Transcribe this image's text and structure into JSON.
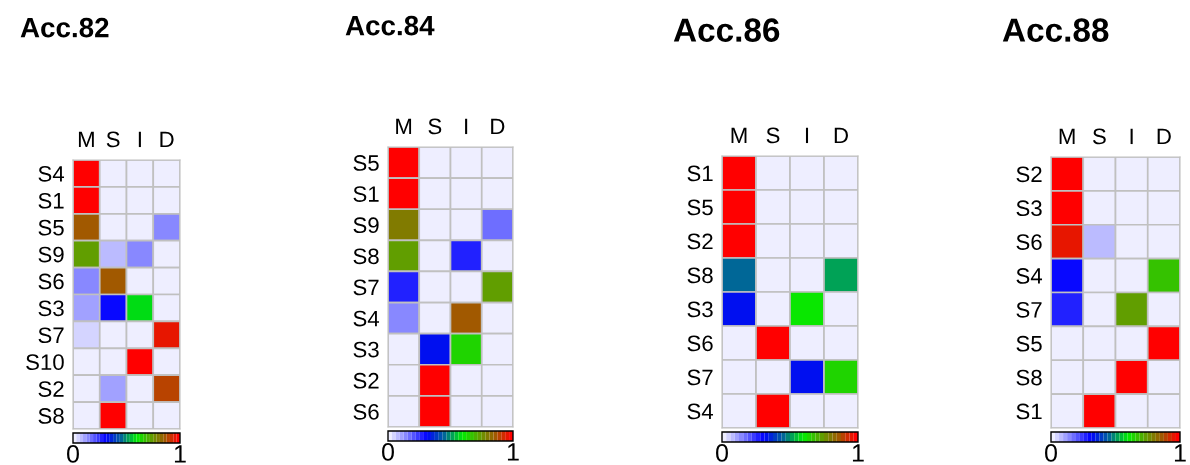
{
  "chart_data": [
    {
      "type": "heatmap",
      "title": "Acc.82",
      "categories": [
        "M",
        "S",
        "I",
        "D"
      ],
      "y_categories": [
        "S4",
        "S1",
        "S5",
        "S9",
        "S6",
        "S3",
        "S7",
        "S10",
        "S2",
        "S8"
      ],
      "cells": [
        [
          1,
          0,
          0,
          0
        ],
        [
          1,
          0,
          0,
          0
        ],
        [
          0.85,
          0,
          0,
          0.15
        ],
        [
          0.72,
          0.07,
          0.15,
          0
        ],
        [
          0.15,
          0.85,
          0,
          0
        ],
        [
          0.1,
          0.3,
          0.58,
          0
        ],
        [
          0.06,
          0,
          0,
          0.95
        ],
        [
          0,
          0,
          1,
          0
        ],
        [
          0,
          0.1,
          0,
          0.9
        ],
        [
          0,
          1,
          0,
          0
        ]
      ],
      "clim": [
        0,
        1
      ],
      "cticks": [
        0,
        1
      ]
    },
    {
      "type": "heatmap",
      "title": "Acc.84",
      "categories": [
        "M",
        "S",
        "I",
        "D"
      ],
      "y_categories": [
        "S5",
        "S1",
        "S9",
        "S8",
        "S7",
        "S4",
        "S3",
        "S2",
        "S6"
      ],
      "cells": [
        [
          1,
          0,
          0,
          0
        ],
        [
          1,
          0,
          0,
          0
        ],
        [
          0.8,
          0,
          0,
          0.18
        ],
        [
          0.72,
          0,
          0.25,
          0
        ],
        [
          0.25,
          0,
          0,
          0.72
        ],
        [
          0.15,
          0,
          0.85,
          0
        ],
        [
          0,
          0.33,
          0.65,
          0
        ],
        [
          0,
          1,
          0,
          0
        ],
        [
          0,
          1,
          0,
          0
        ]
      ],
      "clim": [
        0,
        1
      ],
      "cticks": [
        0,
        1
      ]
    },
    {
      "type": "heatmap",
      "title": "Acc.86",
      "categories": [
        "M",
        "S",
        "I",
        "D"
      ],
      "y_categories": [
        "S1",
        "S5",
        "S2",
        "S8",
        "S3",
        "S6",
        "S7",
        "S4"
      ],
      "cells": [
        [
          1,
          0,
          0,
          0
        ],
        [
          1,
          0,
          0,
          0
        ],
        [
          1,
          0,
          0,
          0
        ],
        [
          0.45,
          0,
          0,
          0.5
        ],
        [
          0.33,
          0,
          0.6,
          0
        ],
        [
          0,
          1,
          0,
          0
        ],
        [
          0,
          0,
          0.33,
          0.65
        ],
        [
          0,
          1,
          0,
          0
        ]
      ],
      "clim": [
        0,
        1
      ],
      "cticks": [
        0,
        1
      ]
    },
    {
      "type": "heatmap",
      "title": "Acc.88",
      "categories": [
        "M",
        "S",
        "I",
        "D"
      ],
      "y_categories": [
        "S2",
        "S3",
        "S6",
        "S4",
        "S7",
        "S5",
        "S8",
        "S1"
      ],
      "cells": [
        [
          1,
          0,
          0,
          0
        ],
        [
          1,
          0,
          0,
          0
        ],
        [
          0.95,
          0.07,
          0,
          0
        ],
        [
          0.3,
          0,
          0,
          0.68
        ],
        [
          0.25,
          0,
          0.72,
          0
        ],
        [
          0,
          0,
          0,
          1
        ],
        [
          0,
          0,
          1,
          0
        ],
        [
          0,
          1,
          0,
          0
        ]
      ],
      "clim": [
        0,
        1
      ],
      "cticks": [
        0,
        1
      ]
    }
  ]
}
